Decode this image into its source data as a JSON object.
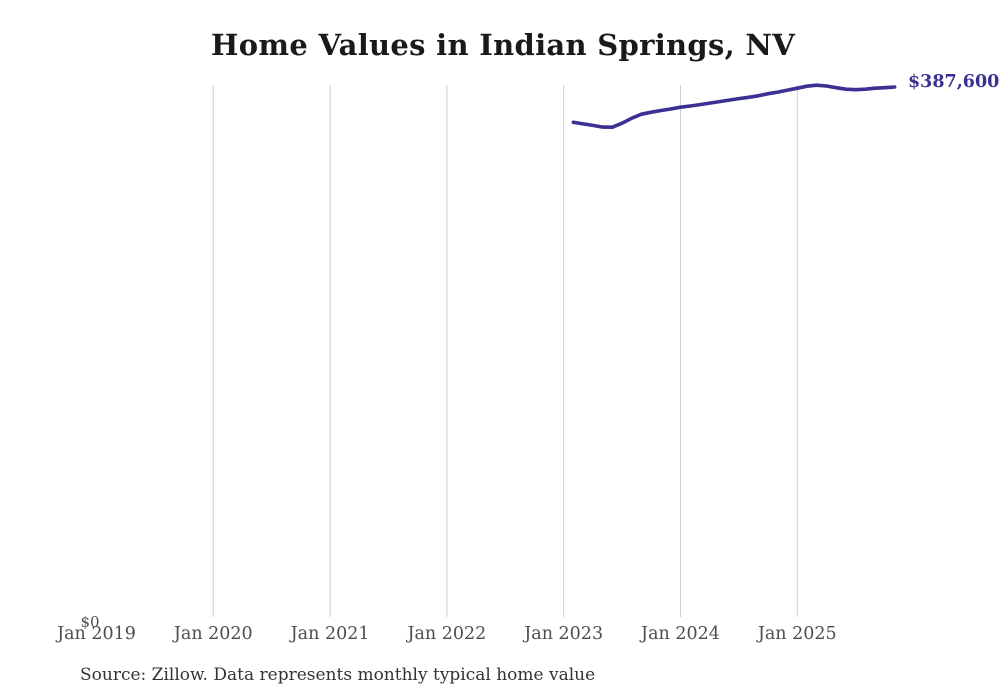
{
  "title": "Home Values in Indian Springs, NV",
  "footer": "Source: Zillow. Data represents monthly typical home value",
  "colors": {
    "line": "#3a3193",
    "end_label": "#3a3193",
    "gridline": "#cccccc",
    "axis_label": "#4d4d4d",
    "title": "#1a1a1a",
    "footer": "#333333",
    "background": "#ffffff"
  },
  "chart_data": {
    "type": "line",
    "title": "Home Values in Indian Springs, NV",
    "xlabel": "",
    "ylabel": "",
    "ylim": [
      0,
      390000
    ],
    "grid": "vertical-only",
    "legend": "none",
    "y_zero_label": "$0",
    "end_label": "$387,600",
    "x_ticks": [
      {
        "label": "Jan 2019",
        "gridline": false
      },
      {
        "label": "Jan 2020",
        "gridline": true
      },
      {
        "label": "Jan 2021",
        "gridline": true
      },
      {
        "label": "Jan 2022",
        "gridline": true
      },
      {
        "label": "Jan 2023",
        "gridline": true
      },
      {
        "label": "Jan 2024",
        "gridline": true
      },
      {
        "label": "Jan 2025",
        "gridline": true
      }
    ],
    "series": [
      {
        "name": "Typical home value",
        "x": [
          "Feb 2023",
          "Mar 2023",
          "Apr 2023",
          "May 2023",
          "Jun 2023",
          "Jul 2023",
          "Aug 2023",
          "Sep 2023",
          "Oct 2023",
          "Nov 2023",
          "Dec 2023",
          "Jan 2024",
          "Feb 2024",
          "Mar 2024",
          "Apr 2024",
          "May 2024",
          "Jun 2024",
          "Jul 2024",
          "Aug 2024",
          "Sep 2024",
          "Oct 2024",
          "Nov 2024",
          "Dec 2024",
          "Jan 2025",
          "Feb 2025",
          "Mar 2025",
          "Apr 2025",
          "May 2025",
          "Jun 2025",
          "Jul 2025",
          "Aug 2025",
          "Sep 2025",
          "Oct 2025",
          "Nov 2025"
        ],
        "values": [
          361800,
          360600,
          359500,
          358300,
          358200,
          361100,
          364800,
          367700,
          369200,
          370400,
          371500,
          372800,
          373700,
          374700,
          375800,
          376900,
          378000,
          379100,
          380100,
          381200,
          382700,
          383900,
          385300,
          386700,
          388200,
          388900,
          388300,
          387100,
          386000,
          385600,
          386000,
          386700,
          387100,
          387600
        ]
      }
    ]
  }
}
